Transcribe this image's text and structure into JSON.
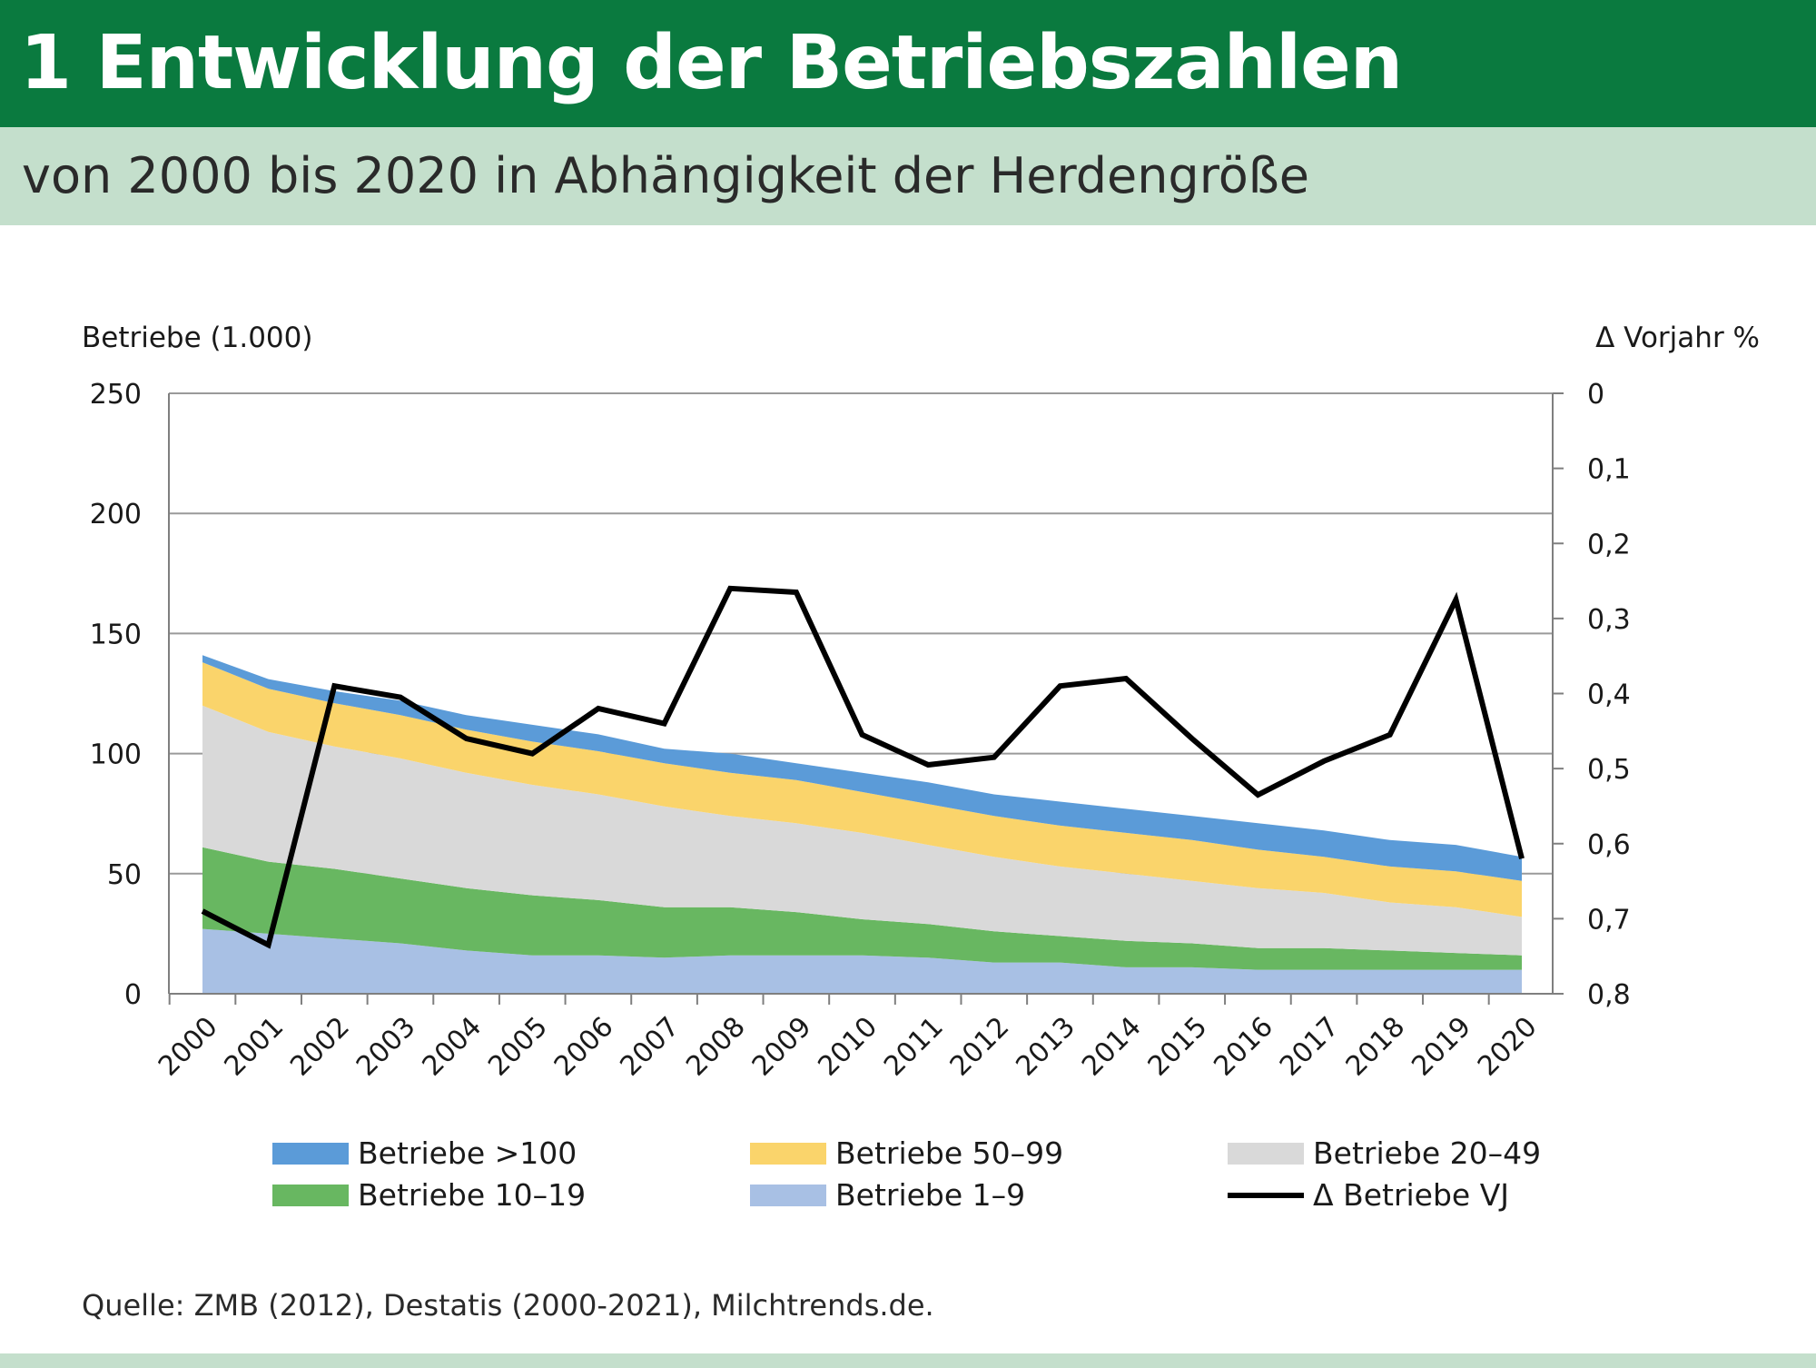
{
  "title": "1 Entwicklung der Betriebszahlen",
  "subtitle": "von 2000 bis 2020 in Abhängigkeit der Herdengröße",
  "source": "Quelle:  ZMB (2012), Destatis (2000-2021), Milchtrends.de.",
  "chart_data": {
    "type": "area",
    "x": [
      "2000",
      "2001",
      "2002",
      "2003",
      "2004",
      "2005",
      "2006",
      "2007",
      "2008",
      "2009",
      "2010",
      "2011",
      "2012",
      "2013",
      "2014",
      "2015",
      "2016",
      "2017",
      "2018",
      "2019",
      "2020"
    ],
    "ylabel_left": "Betriebe (1.000)",
    "ylabel_right": "Δ Vorjahr %",
    "ylim_left": [
      0,
      250
    ],
    "yticks_left": [
      "0",
      "50",
      "100",
      "150",
      "200",
      "250"
    ],
    "ylim_right": [
      0,
      0.8
    ],
    "right_axis_inverted": true,
    "yticks_right": [
      "0",
      "0,1",
      "0,2",
      "0,3",
      "0,4",
      "0,5",
      "0,6",
      "0,7",
      "0,8"
    ],
    "grid": true,
    "legend_position": "bottom",
    "stacked": true,
    "series": [
      {
        "name": "Betriebe 1–9",
        "color": "#a8c0e4",
        "values": [
          27,
          25,
          23,
          21,
          18,
          16,
          16,
          15,
          16,
          16,
          16,
          15,
          13,
          13,
          11,
          11,
          10,
          10,
          10,
          10,
          10
        ]
      },
      {
        "name": "Betriebe 10–19",
        "color": "#68b761",
        "values": [
          34,
          30,
          29,
          27,
          26,
          25,
          23,
          21,
          20,
          18,
          15,
          14,
          13,
          11,
          11,
          10,
          9,
          9,
          8,
          7,
          6
        ]
      },
      {
        "name": "Betriebe 20–49",
        "color": "#d9d9d9",
        "values": [
          59,
          54,
          51,
          50,
          48,
          46,
          44,
          42,
          38,
          37,
          36,
          33,
          31,
          29,
          28,
          26,
          25,
          23,
          20,
          19,
          16
        ]
      },
      {
        "name": "Betriebe 50–99",
        "color": "#fad46b",
        "values": [
          18,
          18,
          18,
          18,
          18,
          18,
          18,
          18,
          18,
          18,
          17,
          17,
          17,
          17,
          17,
          17,
          16,
          15,
          15,
          15,
          15
        ]
      },
      {
        "name": "Betriebe >100",
        "color": "#5b9bd8",
        "values": [
          3,
          4,
          5,
          6,
          6,
          7,
          7,
          6,
          8,
          7,
          8,
          9,
          9,
          10,
          10,
          10,
          11,
          11,
          11,
          11,
          10
        ]
      }
    ],
    "line_series": {
      "name": "Δ Betriebe VJ",
      "color": "#000000",
      "axis": "right",
      "values": [
        0.69,
        0.735,
        0.39,
        0.405,
        0.46,
        0.48,
        0.42,
        0.44,
        0.26,
        0.265,
        0.455,
        0.495,
        0.485,
        0.39,
        0.38,
        0.46,
        0.535,
        0.49,
        0.455,
        0.275,
        0.62
      ]
    }
  }
}
